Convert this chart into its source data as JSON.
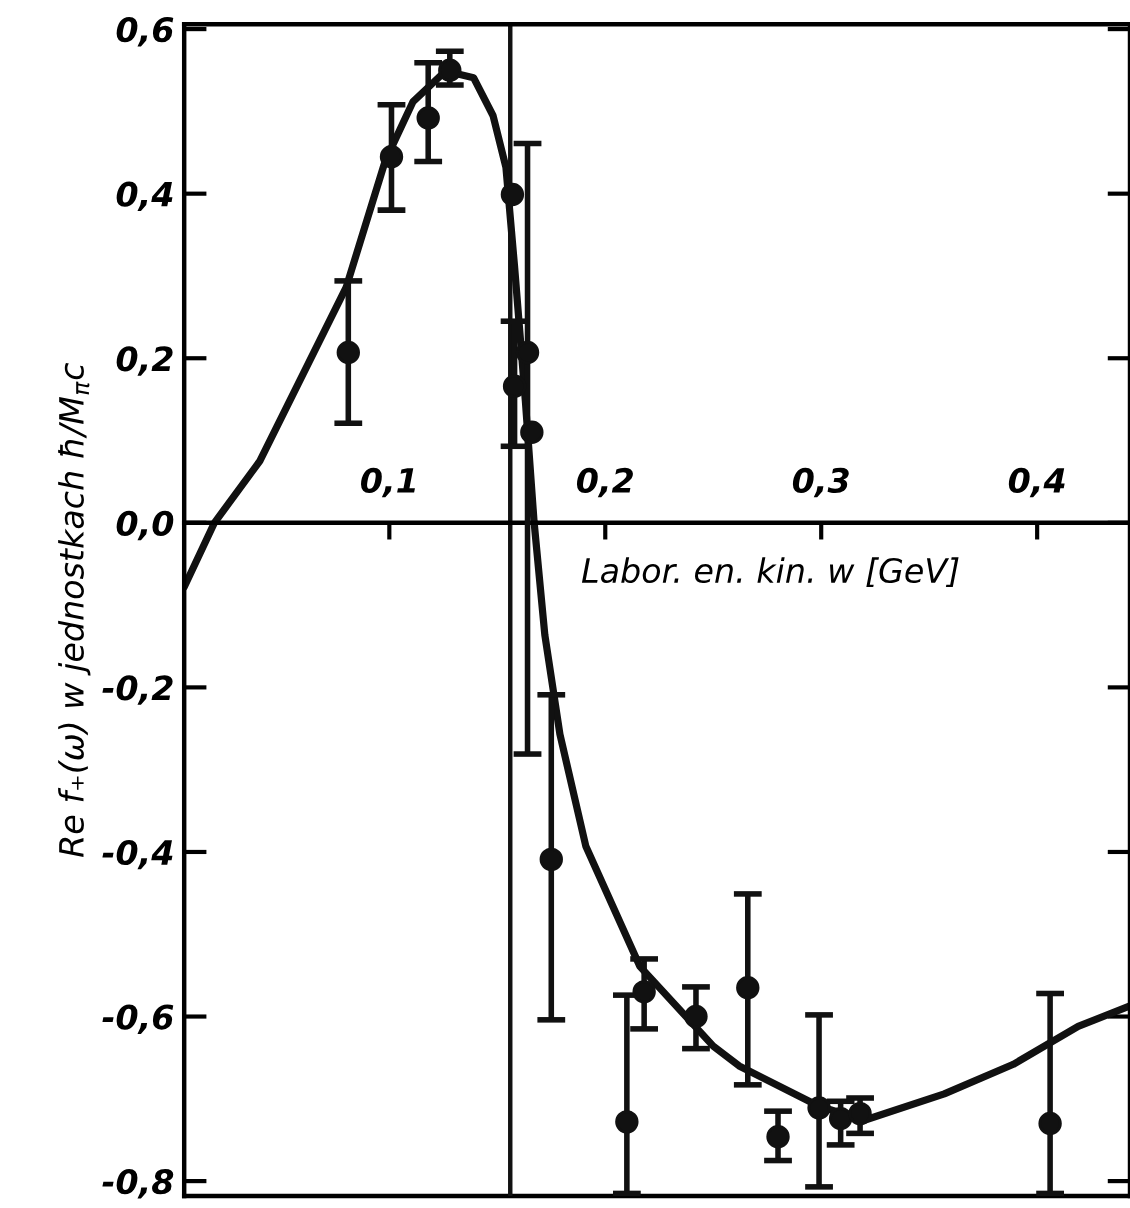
{
  "chart_data": {
    "type": "scatter",
    "xlabel": "Labor. en. kin. w [GeV]",
    "ylabel": "Re f₊(ω) w jednostkach ħ/M$_{π}$c",
    "xlim": [
      0.005,
      0.443
    ],
    "ylim": [
      -0.818,
      0.606
    ],
    "xticks": [
      {
        "value": 0.1,
        "label": "0,1"
      },
      {
        "value": 0.2,
        "label": "0,2"
      },
      {
        "value": 0.3,
        "label": "0,3"
      },
      {
        "value": 0.4,
        "label": "0,4"
      }
    ],
    "yticks": [
      {
        "value": 0.6,
        "label": "0,6"
      },
      {
        "value": 0.4,
        "label": "0,4"
      },
      {
        "value": 0.2,
        "label": "0,2"
      },
      {
        "value": 0.0,
        "label": "0,0"
      },
      {
        "value": -0.2,
        "label": "-0,2"
      },
      {
        "value": -0.4,
        "label": "-0,4"
      },
      {
        "value": -0.6,
        "label": "-0,6"
      },
      {
        "value": -0.8,
        "label": "-0,8"
      }
    ],
    "grid": false,
    "legend": false,
    "ref_lines": [
      {
        "axis": "x",
        "value": 0.156,
        "color": "#111111"
      }
    ],
    "series": [
      {
        "color": "#111111",
        "marker": "circle",
        "x": [
          0.081,
          0.101,
          0.118,
          0.128,
          0.157,
          0.158,
          0.164,
          0.166,
          0.175,
          0.21,
          0.218,
          0.242,
          0.266,
          0.28,
          0.299,
          0.309,
          0.318,
          0.406
        ],
        "values": [
          0.207,
          0.445,
          0.492,
          0.55,
          0.399,
          0.166,
          0.207,
          0.11,
          -0.409,
          -0.728,
          -0.57,
          -0.6,
          -0.565,
          -0.746,
          -0.711,
          -0.724,
          -0.718,
          -0.73
        ],
        "errors": [
          [
            0.121,
            0.294
          ],
          [
            0.38,
            0.508
          ],
          [
            0.439,
            0.559
          ],
          [
            0.532,
            0.573
          ],
          null,
          [
            0.093,
            0.245
          ],
          [
            -0.281,
            0.461
          ],
          null,
          [
            -0.604,
            -0.209
          ],
          [
            -0.815,
            -0.574
          ],
          [
            -0.615,
            -0.53
          ],
          [
            -0.639,
            -0.564
          ],
          [
            -0.683,
            -0.451
          ],
          [
            -0.775,
            -0.715
          ],
          [
            -0.807,
            -0.598
          ],
          [
            -0.756,
            -0.703
          ],
          [
            -0.742,
            -0.699
          ],
          [
            -0.815,
            -0.572
          ]
        ]
      },
      {
        "type": "line",
        "color": "#111111",
        "marker": "none",
        "line_style": "solid",
        "x": [
          0.005,
          0.019,
          0.04,
          0.08,
          0.098,
          0.111,
          0.126,
          0.139,
          0.148,
          0.154,
          0.158,
          0.163,
          0.167,
          0.172,
          0.179,
          0.191,
          0.216,
          0.25,
          0.262,
          0.299,
          0.32,
          0.357,
          0.389,
          0.419,
          0.443
        ],
        "values": [
          -0.078,
          0.0,
          0.075,
          0.286,
          0.439,
          0.512,
          0.549,
          0.541,
          0.495,
          0.432,
          0.311,
          0.148,
          0.002,
          -0.136,
          -0.257,
          -0.393,
          -0.539,
          -0.636,
          -0.66,
          -0.709,
          -0.726,
          -0.694,
          -0.658,
          -0.612,
          -0.587
        ]
      }
    ]
  }
}
